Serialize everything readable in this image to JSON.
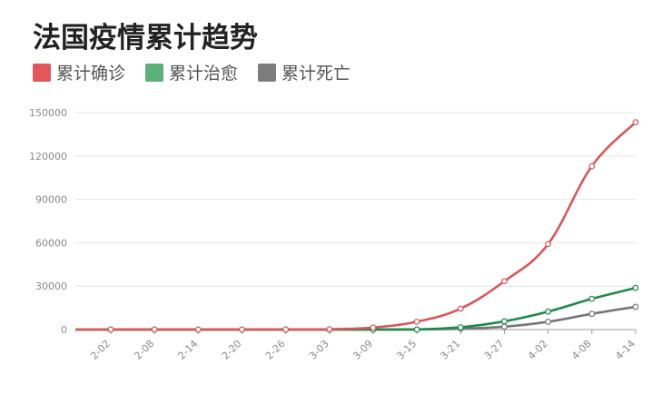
{
  "chart_data": {
    "type": "line",
    "title": "法国疫情累计趋势",
    "xlabel": "",
    "ylabel": "",
    "ylim": [
      0,
      150000
    ],
    "yticks": [
      0,
      30000,
      60000,
      90000,
      120000,
      150000
    ],
    "x_tick_labels": [
      "2-02",
      "2-08",
      "2-14",
      "2-20",
      "2-26",
      "3-03",
      "3-09",
      "3-15",
      "3-21",
      "3-27",
      "4-02",
      "4-08",
      "4-14"
    ],
    "grid": true,
    "legend_position": "top-left",
    "series": [
      {
        "name": "累计确诊",
        "color": "#d9575b",
        "values": [
          6,
          11,
          11,
          12,
          14,
          212,
          1412,
          5423,
          14459,
          33414,
          59105,
          112950,
          143303
        ]
      },
      {
        "name": "累计治愈",
        "color": "#1f8a4c",
        "values": [
          0,
          2,
          2,
          4,
          11,
          12,
          12,
          12,
          1587,
          5700,
          12428,
          21254,
          28805
        ]
      },
      {
        "name": "累计死亡",
        "color": "#777777",
        "values": [
          0,
          0,
          1,
          1,
          2,
          4,
          25,
          127,
          562,
          1995,
          5387,
          10869,
          15729
        ]
      }
    ]
  },
  "legend_swatch_colors": [
    "#e0575c",
    "#5db07a",
    "#7d7d7d"
  ]
}
